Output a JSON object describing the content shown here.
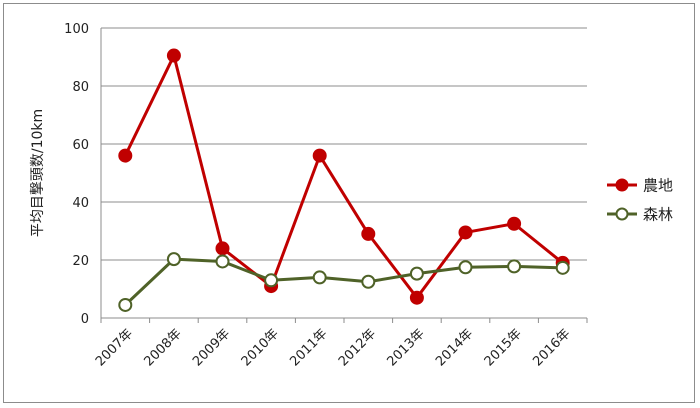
{
  "chart_data": {
    "type": "line",
    "categories": [
      "2007年",
      "2008年",
      "2009年",
      "2010年",
      "2011年",
      "2012年",
      "2013年",
      "2014年",
      "2015年",
      "2016年"
    ],
    "series": [
      {
        "name": "農地",
        "values": [
          56,
          90.5,
          24,
          11,
          56,
          29,
          7,
          29.5,
          32.5,
          19
        ],
        "color": "#c00000",
        "marker": "filled-circle"
      },
      {
        "name": "森林",
        "values": [
          4.5,
          20.3,
          19.5,
          13,
          14,
          12.5,
          15.3,
          17.5,
          17.8,
          17.3
        ],
        "color": "#4f6228",
        "marker": "hollow-circle"
      }
    ],
    "ylabel": "平均目撃頭数/10km",
    "xlabel": "",
    "ylim": [
      0,
      100
    ],
    "yticks": [
      0,
      20,
      40,
      60,
      80,
      100
    ],
    "grid": true,
    "legend": "right"
  }
}
